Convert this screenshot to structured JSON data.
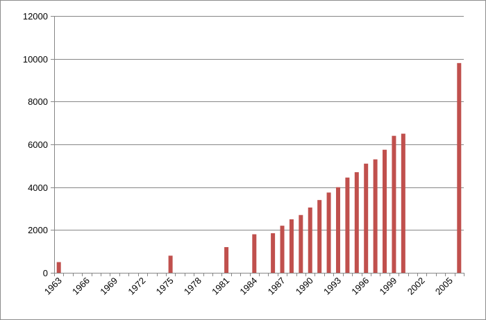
{
  "chart_data": {
    "type": "bar",
    "title": "",
    "xlabel": "",
    "ylabel": "",
    "ylim": [
      0,
      12000
    ],
    "y_ticks": [
      0,
      2000,
      4000,
      6000,
      8000,
      10000,
      12000
    ],
    "x_tick_labels": [
      "1963",
      "1966",
      "1969",
      "1972",
      "1975",
      "1978",
      "1981",
      "1984",
      "1987",
      "1990",
      "1993",
      "1996",
      "1999",
      "2002",
      "2005"
    ],
    "grid": "horizontal",
    "legend": "none",
    "bar_color": "#c0504d",
    "categories": [
      "1963",
      "1964",
      "1965",
      "1966",
      "1967",
      "1968",
      "1969",
      "1970",
      "1971",
      "1972",
      "1973",
      "1974",
      "1975",
      "1976",
      "1977",
      "1978",
      "1979",
      "1980",
      "1981",
      "1982",
      "1983",
      "1984",
      "1985",
      "1986",
      "1987",
      "1988",
      "1989",
      "1990",
      "1991",
      "1992",
      "1993",
      "1994",
      "1995",
      "1996",
      "1997",
      "1998",
      "1999",
      "2000",
      "2001",
      "2002",
      "2003",
      "2004",
      "2005",
      "2006"
    ],
    "values": [
      500,
      0,
      0,
      0,
      0,
      0,
      0,
      0,
      0,
      0,
      0,
      0,
      800,
      0,
      0,
      0,
      0,
      0,
      1200,
      0,
      0,
      1800,
      0,
      1850,
      2200,
      2500,
      2700,
      3050,
      3400,
      3750,
      4000,
      4450,
      4700,
      5100,
      5300,
      5750,
      6400,
      6500,
      0,
      0,
      0,
      0,
      0,
      9800
    ]
  }
}
